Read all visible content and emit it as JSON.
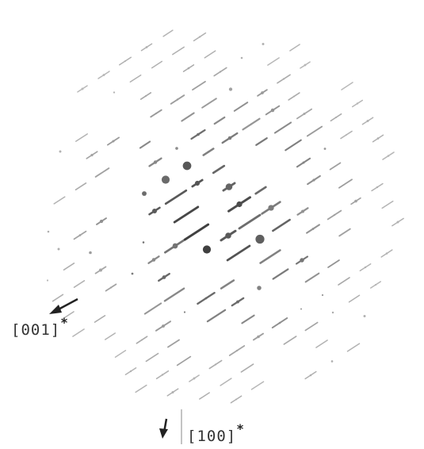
{
  "labels": [
    {
      "text": "[001]",
      "superscript": "*"
    },
    {
      "text": "[100]",
      "superscript": "*"
    }
  ]
}
